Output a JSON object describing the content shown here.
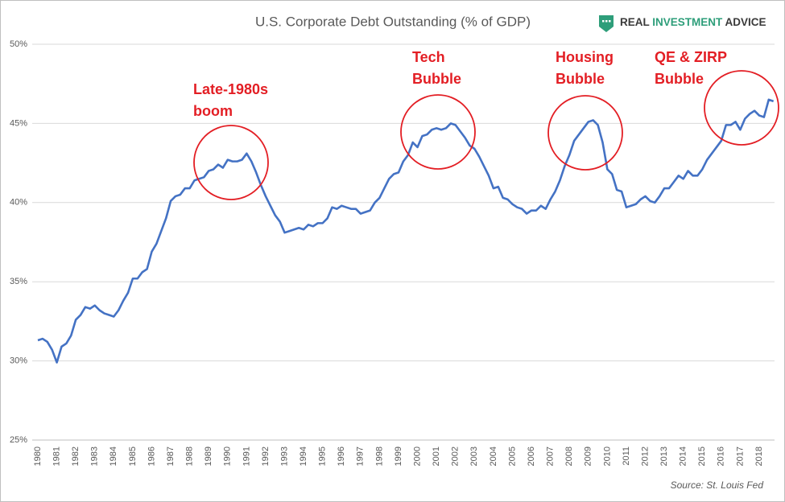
{
  "chart_data": {
    "type": "line",
    "title": "U.S. Corporate Debt Outstanding (% of GDP)",
    "brand": [
      "REAL",
      "INVESTMENT",
      "ADVICE"
    ],
    "source": "Source: St. Louis Fed",
    "color": "#4472c4",
    "annotation_color": "#e31e24",
    "grid": true,
    "ylim": [
      25,
      50
    ],
    "yticks": [
      {
        "value": 25,
        "label": "25%"
      },
      {
        "value": 30,
        "label": "30%"
      },
      {
        "value": 35,
        "label": "35%"
      },
      {
        "value": 40,
        "label": "40%"
      },
      {
        "value": 45,
        "label": "45%"
      },
      {
        "value": 50,
        "label": "50%"
      }
    ],
    "annotations": [
      {
        "lines": [
          "Late-1980s",
          "boom"
        ]
      },
      {
        "lines": [
          "Tech",
          "Bubble"
        ]
      },
      {
        "lines": [
          "Housing",
          "Bubble"
        ]
      },
      {
        "lines": [
          "QE & ZIRP",
          "Bubble"
        ]
      }
    ],
    "categories": [
      "1980",
      null,
      null,
      null,
      "1981",
      null,
      null,
      null,
      "1982",
      null,
      null,
      null,
      "1983",
      null,
      null,
      null,
      "1984",
      null,
      null,
      null,
      "1985",
      null,
      null,
      null,
      "1986",
      null,
      null,
      null,
      "1987",
      null,
      null,
      null,
      "1988",
      null,
      null,
      null,
      "1989",
      null,
      null,
      null,
      "1990",
      null,
      null,
      null,
      "1991",
      null,
      null,
      null,
      "1992",
      null,
      null,
      null,
      "1993",
      null,
      null,
      null,
      "1994",
      null,
      null,
      null,
      "1995",
      null,
      null,
      null,
      "1996",
      null,
      null,
      null,
      "1997",
      null,
      null,
      null,
      "1998",
      null,
      null,
      null,
      "1999",
      null,
      null,
      null,
      "2000",
      null,
      null,
      null,
      "2001",
      null,
      null,
      null,
      "2002",
      null,
      null,
      null,
      "2003",
      null,
      null,
      null,
      "2004",
      null,
      null,
      null,
      "2005",
      null,
      null,
      null,
      "2006",
      null,
      null,
      null,
      "2007",
      null,
      null,
      null,
      "2008",
      null,
      null,
      null,
      "2009",
      null,
      null,
      null,
      "2010",
      null,
      null,
      null,
      "2011",
      null,
      null,
      null,
      "2012",
      null,
      null,
      null,
      "2013",
      null,
      null,
      null,
      "2014",
      null,
      null,
      null,
      "2015",
      null,
      null,
      null,
      "2016",
      null,
      null,
      null,
      "2017",
      null,
      null,
      null,
      "2018",
      null,
      null,
      null
    ],
    "values": [
      31.3,
      31.4,
      31.2,
      30.7,
      29.9,
      30.9,
      31.1,
      31.6,
      32.6,
      32.9,
      33.4,
      33.3,
      33.5,
      33.2,
      33.0,
      32.9,
      32.8,
      33.2,
      33.8,
      34.3,
      35.2,
      35.2,
      35.6,
      35.8,
      36.9,
      37.4,
      38.2,
      39.0,
      40.1,
      40.4,
      40.5,
      40.9,
      40.9,
      41.4,
      41.5,
      41.6,
      42.0,
      42.1,
      42.4,
      42.2,
      42.7,
      42.6,
      42.6,
      42.7,
      43.1,
      42.6,
      41.9,
      41.1,
      40.4,
      39.8,
      39.2,
      38.8,
      38.1,
      38.2,
      38.3,
      38.4,
      38.3,
      38.6,
      38.5,
      38.7,
      38.7,
      39.0,
      39.7,
      39.6,
      39.8,
      39.7,
      39.6,
      39.6,
      39.3,
      39.4,
      39.5,
      40.0,
      40.3,
      40.9,
      41.5,
      41.8,
      41.9,
      42.6,
      43.0,
      43.8,
      43.5,
      44.2,
      44.3,
      44.6,
      44.7,
      44.6,
      44.7,
      45.0,
      44.9,
      44.5,
      44.1,
      43.6,
      43.4,
      42.9,
      42.3,
      41.7,
      40.9,
      41.0,
      40.3,
      40.2,
      39.9,
      39.7,
      39.6,
      39.3,
      39.5,
      39.5,
      39.8,
      39.6,
      40.2,
      40.7,
      41.4,
      42.3,
      43.0,
      43.9,
      44.3,
      44.7,
      45.1,
      45.2,
      44.9,
      43.8,
      42.1,
      41.8,
      40.8,
      40.7,
      39.7,
      39.8,
      39.9,
      40.2,
      40.4,
      40.1,
      40.0,
      40.4,
      40.9,
      40.9,
      41.3,
      41.7,
      41.5,
      42.0,
      41.7,
      41.7,
      42.1,
      42.7,
      43.1,
      43.5,
      43.9,
      44.9,
      44.9,
      45.1,
      44.6,
      45.3,
      45.6,
      45.8,
      45.5,
      45.4,
      46.5,
      46.4
    ]
  }
}
